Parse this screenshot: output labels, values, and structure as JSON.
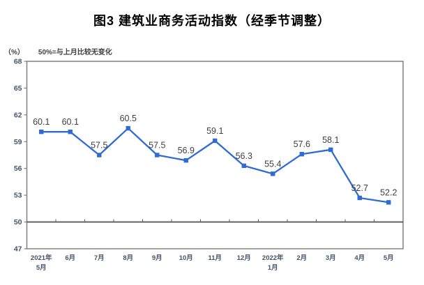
{
  "chart_data": {
    "type": "line",
    "title": "图3 建筑业商务活动指数（经季节调整）",
    "unit_label": "（%）",
    "note": "50%=与上月比较无变化",
    "series_name": "建筑业商务活动指数",
    "categories": [
      [
        "2021年",
        "5月"
      ],
      [
        "6月"
      ],
      [
        "7月"
      ],
      [
        "8月"
      ],
      [
        "9月"
      ],
      [
        "10月"
      ],
      [
        "11月"
      ],
      [
        "12月"
      ],
      [
        "2022年",
        "1月"
      ],
      [
        "2月"
      ],
      [
        "3月"
      ],
      [
        "4月"
      ],
      [
        "5月"
      ]
    ],
    "values": [
      60.1,
      60.1,
      57.5,
      60.5,
      57.5,
      56.9,
      59.1,
      56.3,
      55.4,
      57.6,
      58.1,
      52.7,
      52.2
    ],
    "ylim": [
      47,
      68
    ],
    "yticks": [
      47,
      50,
      53,
      56,
      59,
      62,
      65,
      68
    ],
    "reference_line": 50,
    "grid": false,
    "legend": "none",
    "marker": "square",
    "colors": {
      "line": "#2E6BD4",
      "marker": "#2E6BD4",
      "frame": "#808080",
      "reference_line": "#595959",
      "data_label": "#404040",
      "axis_label": "#44546A",
      "title": "#000000"
    }
  }
}
